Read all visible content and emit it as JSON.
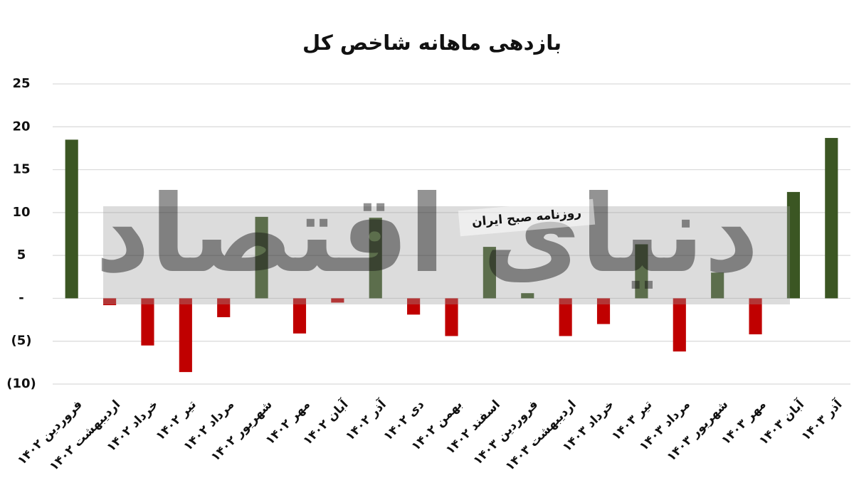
{
  "chart_data": {
    "type": "bar",
    "title": "بازدهی ماهانه شاخص کل",
    "categories": [
      "فروردین ۱۴۰۲",
      "اردیبهشت ۱۴۰۲",
      "خرداد ۱۴۰۲",
      "تیر ۱۴۰۲",
      "مرداد ۱۴۰۲",
      "شهریور ۱۴۰۲",
      "مهر ۱۴۰۲",
      "آبان ۱۴۰۲",
      "آذر ۱۴۰۲",
      "دی ۱۴۰۲",
      "بهمن ۱۴۰۲",
      "اسفند ۱۴۰۲",
      "فروردین ۱۴۰۳",
      "اردیبهشت ۱۴۰۳",
      "خرداد ۱۴۰۳",
      "تیر ۱۴۰۳",
      "مرداد ۱۴۰۳",
      "شهریور ۱۴۰۳",
      "مهر ۱۴۰۳",
      "آبان ۱۴۰۳",
      "آذر ۱۴۰۳"
    ],
    "values": [
      18.5,
      -0.8,
      -5.5,
      -8.6,
      -2.2,
      9.5,
      -4.1,
      -0.5,
      9.4,
      -1.9,
      -4.4,
      6.0,
      0.6,
      -4.4,
      -3.0,
      6.3,
      -6.2,
      3.0,
      -4.2,
      12.4,
      18.7
    ],
    "positive_color": "#3b5623",
    "negative_color": "#c00000",
    "ylim": [
      -10,
      25
    ],
    "yticks": [
      {
        "value": -10,
        "label": "(10)"
      },
      {
        "value": -5,
        "label": "(5)"
      },
      {
        "value": 0,
        "label": "-"
      },
      5,
      10,
      15,
      20,
      25
    ],
    "grid": true,
    "watermark": {
      "brand": "دنیای اقتصاد",
      "tagline": "روزنامه صبح ایران"
    }
  }
}
